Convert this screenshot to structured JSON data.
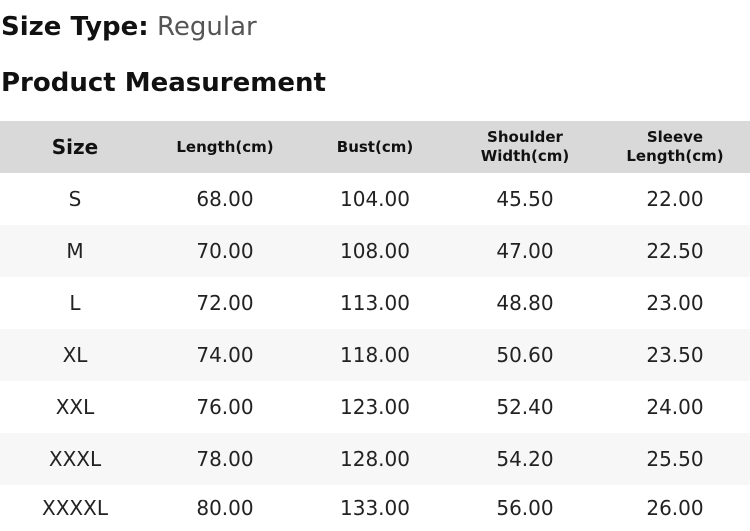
{
  "size_type": {
    "label": "Size Type:",
    "value": "Regular"
  },
  "section_title": "Product Measurement",
  "table": {
    "headers": [
      "Size",
      "Length(cm)",
      "Bust(cm)",
      "Shoulder\nWidth(cm)",
      "Sleeve\nLength(cm)"
    ],
    "rows": [
      [
        "S",
        "68.00",
        "104.00",
        "45.50",
        "22.00"
      ],
      [
        "M",
        "70.00",
        "108.00",
        "47.00",
        "22.50"
      ],
      [
        "L",
        "72.00",
        "113.00",
        "48.80",
        "23.00"
      ],
      [
        "XL",
        "74.00",
        "118.00",
        "50.60",
        "23.50"
      ],
      [
        "XXL",
        "76.00",
        "123.00",
        "52.40",
        "24.00"
      ],
      [
        "XXXL",
        "78.00",
        "128.00",
        "54.20",
        "25.50"
      ],
      [
        "XXXXL",
        "80.00",
        "133.00",
        "56.00",
        "26.00"
      ]
    ]
  }
}
